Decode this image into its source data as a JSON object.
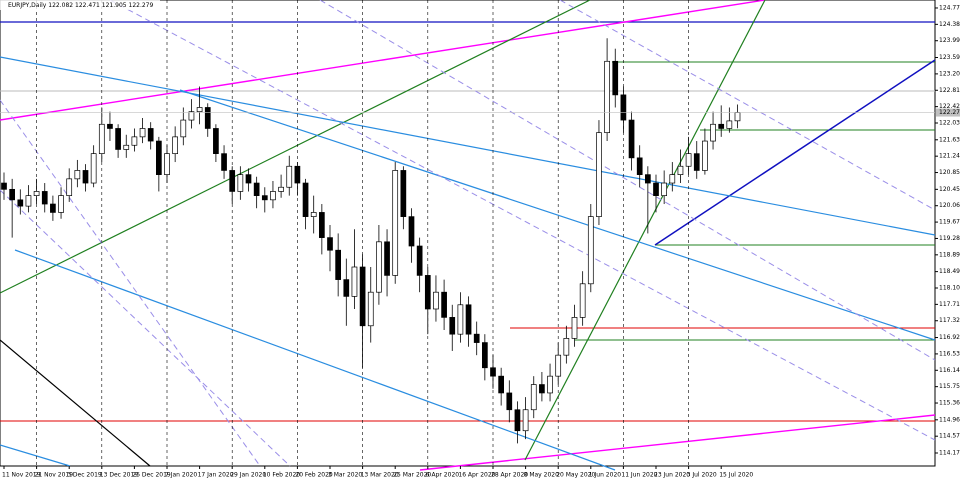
{
  "chart_data": {
    "type": "candlestick",
    "title": "EURJPY,Daily",
    "categories": [
      "11 Nov 2019",
      null,
      null,
      null,
      "21 Nov 2019",
      null,
      null,
      null,
      "3 Dec 2019",
      null,
      null,
      null,
      "13 Dec 2019",
      null,
      null,
      null,
      "25 Dec 2019",
      null,
      null,
      null,
      "7 Jan 2020",
      null,
      null,
      null,
      "17 Jan 2020",
      null,
      null,
      null,
      "29 Jan 2020",
      null,
      null,
      null,
      "10 Feb 2020",
      null,
      null,
      null,
      "20 Feb 2020",
      null,
      null,
      null,
      "3 Mar 2020",
      null,
      null,
      null,
      "13 Mar 2020",
      null,
      null,
      null,
      "25 Mar 2020",
      null,
      null,
      null,
      "6 Apr 2020",
      null,
      null,
      null,
      "16 Apr 2020",
      null,
      null,
      null,
      "28 Apr 2020",
      null,
      null,
      null,
      "8 May 2020",
      null,
      null,
      null,
      "20 May 2020",
      null,
      null,
      null,
      "1 Jun 2020",
      null,
      null,
      null,
      "11 Jun 2020",
      null,
      null,
      null,
      "23 Jun 2020",
      null,
      null,
      null,
      "3 Jul 2020",
      null,
      null,
      null,
      "15 Jul 2020",
      null,
      null
    ],
    "ohlc": [
      [
        120.6,
        120.85,
        120.2,
        120.45
      ],
      [
        120.45,
        120.7,
        119.3,
        120.2
      ],
      [
        120.2,
        120.45,
        119.85,
        120.05
      ],
      [
        120.05,
        120.55,
        119.9,
        120.3
      ],
      [
        120.3,
        120.7,
        120.1,
        120.4
      ],
      [
        120.4,
        120.6,
        119.9,
        120.1
      ],
      [
        120.1,
        120.3,
        119.7,
        119.9
      ],
      [
        119.9,
        120.5,
        119.75,
        120.3
      ],
      [
        120.3,
        120.95,
        120.15,
        120.7
      ],
      [
        120.7,
        121.15,
        120.5,
        120.9
      ],
      [
        120.9,
        121.05,
        120.4,
        120.6
      ],
      [
        120.6,
        121.5,
        120.5,
        121.3
      ],
      [
        121.3,
        122.4,
        121.1,
        122.0
      ],
      [
        122.0,
        122.3,
        121.6,
        121.9
      ],
      [
        121.9,
        122.0,
        121.2,
        121.4
      ],
      [
        121.4,
        121.75,
        121.2,
        121.5
      ],
      [
        121.5,
        121.9,
        121.35,
        121.7
      ],
      [
        121.7,
        122.15,
        121.55,
        121.9
      ],
      [
        121.9,
        122.05,
        121.4,
        121.6
      ],
      [
        121.6,
        121.7,
        120.4,
        120.8
      ],
      [
        120.8,
        121.5,
        120.6,
        121.3
      ],
      [
        121.3,
        121.95,
        121.1,
        121.7
      ],
      [
        121.7,
        122.4,
        121.5,
        122.1
      ],
      [
        122.1,
        122.6,
        121.9,
        122.3
      ],
      [
        122.3,
        122.9,
        122.0,
        122.4
      ],
      [
        122.4,
        122.5,
        121.7,
        121.9
      ],
      [
        121.9,
        122.0,
        121.1,
        121.3
      ],
      [
        121.3,
        121.5,
        120.7,
        120.9
      ],
      [
        120.9,
        121.0,
        120.1,
        120.4
      ],
      [
        120.4,
        121.0,
        120.2,
        120.8
      ],
      [
        120.8,
        120.95,
        120.4,
        120.6
      ],
      [
        120.6,
        120.75,
        120.0,
        120.3
      ],
      [
        120.3,
        120.5,
        119.9,
        120.2
      ],
      [
        120.2,
        120.65,
        120.0,
        120.4
      ],
      [
        120.4,
        120.8,
        120.25,
        120.5
      ],
      [
        120.5,
        121.25,
        120.3,
        121.0
      ],
      [
        121.0,
        121.1,
        120.3,
        120.6
      ],
      [
        120.6,
        120.7,
        119.5,
        119.8
      ],
      [
        119.8,
        120.3,
        119.4,
        119.9
      ],
      [
        119.9,
        120.1,
        118.9,
        119.3
      ],
      [
        119.3,
        119.6,
        118.5,
        119.0
      ],
      [
        119.0,
        119.4,
        117.9,
        118.3
      ],
      [
        118.3,
        118.8,
        117.2,
        117.9
      ],
      [
        117.9,
        119.5,
        117.6,
        118.6
      ],
      [
        118.6,
        118.9,
        116.2,
        117.2
      ],
      [
        117.2,
        118.6,
        116.8,
        118.0
      ],
      [
        118.0,
        119.6,
        117.7,
        119.2
      ],
      [
        119.2,
        119.5,
        117.9,
        118.4
      ],
      [
        118.4,
        121.1,
        118.2,
        120.9
      ],
      [
        120.9,
        121.0,
        119.5,
        119.8
      ],
      [
        119.8,
        120.0,
        118.7,
        119.1
      ],
      [
        119.1,
        119.3,
        118.0,
        118.4
      ],
      [
        118.4,
        118.6,
        117.0,
        117.6
      ],
      [
        117.6,
        118.4,
        117.3,
        118.0
      ],
      [
        118.0,
        118.3,
        117.1,
        117.4
      ],
      [
        117.4,
        117.7,
        116.6,
        117.0
      ],
      [
        117.0,
        118.0,
        116.8,
        117.7
      ],
      [
        117.7,
        117.9,
        116.7,
        117.0
      ],
      [
        117.0,
        117.3,
        116.5,
        116.8
      ],
      [
        116.8,
        117.0,
        115.9,
        116.2
      ],
      [
        116.2,
        116.5,
        115.7,
        116.0
      ],
      [
        116.0,
        116.2,
        115.3,
        115.6
      ],
      [
        115.6,
        115.9,
        114.9,
        115.2
      ],
      [
        115.2,
        115.4,
        114.4,
        114.7
      ],
      [
        114.7,
        115.5,
        114.5,
        115.2
      ],
      [
        115.2,
        116.0,
        115.0,
        115.8
      ],
      [
        115.8,
        116.1,
        115.4,
        115.6
      ],
      [
        115.6,
        116.3,
        115.4,
        116.0
      ],
      [
        116.0,
        116.8,
        115.8,
        116.5
      ],
      [
        116.5,
        117.2,
        116.3,
        116.9
      ],
      [
        116.9,
        117.7,
        116.7,
        117.4
      ],
      [
        117.4,
        118.5,
        117.2,
        118.2
      ],
      [
        118.2,
        120.1,
        118.0,
        119.8
      ],
      [
        119.8,
        122.1,
        119.6,
        121.8
      ],
      [
        121.8,
        124.05,
        121.6,
        123.5
      ],
      [
        123.5,
        123.8,
        122.4,
        122.7
      ],
      [
        122.7,
        122.9,
        121.8,
        122.1
      ],
      [
        122.1,
        122.3,
        120.9,
        121.2
      ],
      [
        121.2,
        121.5,
        120.5,
        120.8
      ],
      [
        120.8,
        121.0,
        119.4,
        120.6
      ],
      [
        120.6,
        120.8,
        119.9,
        120.3
      ],
      [
        120.3,
        120.9,
        120.1,
        120.6
      ],
      [
        120.6,
        121.1,
        120.4,
        120.8
      ],
      [
        120.8,
        121.4,
        120.6,
        121.0
      ],
      [
        121.0,
        121.7,
        120.8,
        121.3
      ],
      [
        121.3,
        121.6,
        120.7,
        120.9
      ],
      [
        120.9,
        121.9,
        120.8,
        121.6
      ],
      [
        121.6,
        122.3,
        121.4,
        122.0
      ],
      [
        122.0,
        122.45,
        121.7,
        121.9
      ],
      [
        121.9,
        122.4,
        121.8,
        122.08
      ],
      [
        122.082,
        122.471,
        121.905,
        122.279
      ]
    ],
    "up_color": "#ffffff",
    "down_color": "#000000",
    "grid": true,
    "ylim": [
      113.86,
      124.96
    ],
    "yticks": [
      {
        "value": 124.77,
        "label": "124.770"
      },
      {
        "value": 124.38,
        "label": "124.380"
      },
      {
        "value": 123.99,
        "label": "123.990"
      },
      {
        "value": 123.59,
        "label": "123.590"
      },
      {
        "value": 123.2,
        "label": "123.200"
      },
      {
        "value": 122.81,
        "label": "122.810"
      },
      {
        "value": 122.42,
        "label": "122.420"
      },
      {
        "value": 122.03,
        "label": "122.030"
      },
      {
        "value": 121.63,
        "label": "121.630"
      },
      {
        "value": 121.24,
        "label": "121.240"
      },
      {
        "value": 120.85,
        "label": "120.850"
      },
      {
        "value": 120.45,
        "label": "120.450"
      },
      {
        "value": 120.06,
        "label": "120.060"
      },
      {
        "value": 119.67,
        "label": "119.670"
      },
      {
        "value": 119.28,
        "label": "119.280"
      },
      {
        "value": 118.89,
        "label": "118.890"
      },
      {
        "value": 118.49,
        "label": "118.490"
      },
      {
        "value": 118.1,
        "label": "118.100"
      },
      {
        "value": 117.71,
        "label": "117.710"
      },
      {
        "value": 117.32,
        "label": "117.320"
      },
      {
        "value": 116.92,
        "label": "116.920"
      },
      {
        "value": 116.53,
        "label": "116.530"
      },
      {
        "value": 116.14,
        "label": "116.140"
      },
      {
        "value": 115.75,
        "label": "115.750"
      },
      {
        "value": 115.36,
        "label": "115.360"
      },
      {
        "value": 114.96,
        "label": "114.960"
      },
      {
        "value": 114.57,
        "label": "114.570"
      },
      {
        "value": 114.17,
        "label": "114.170"
      }
    ]
  }
}
